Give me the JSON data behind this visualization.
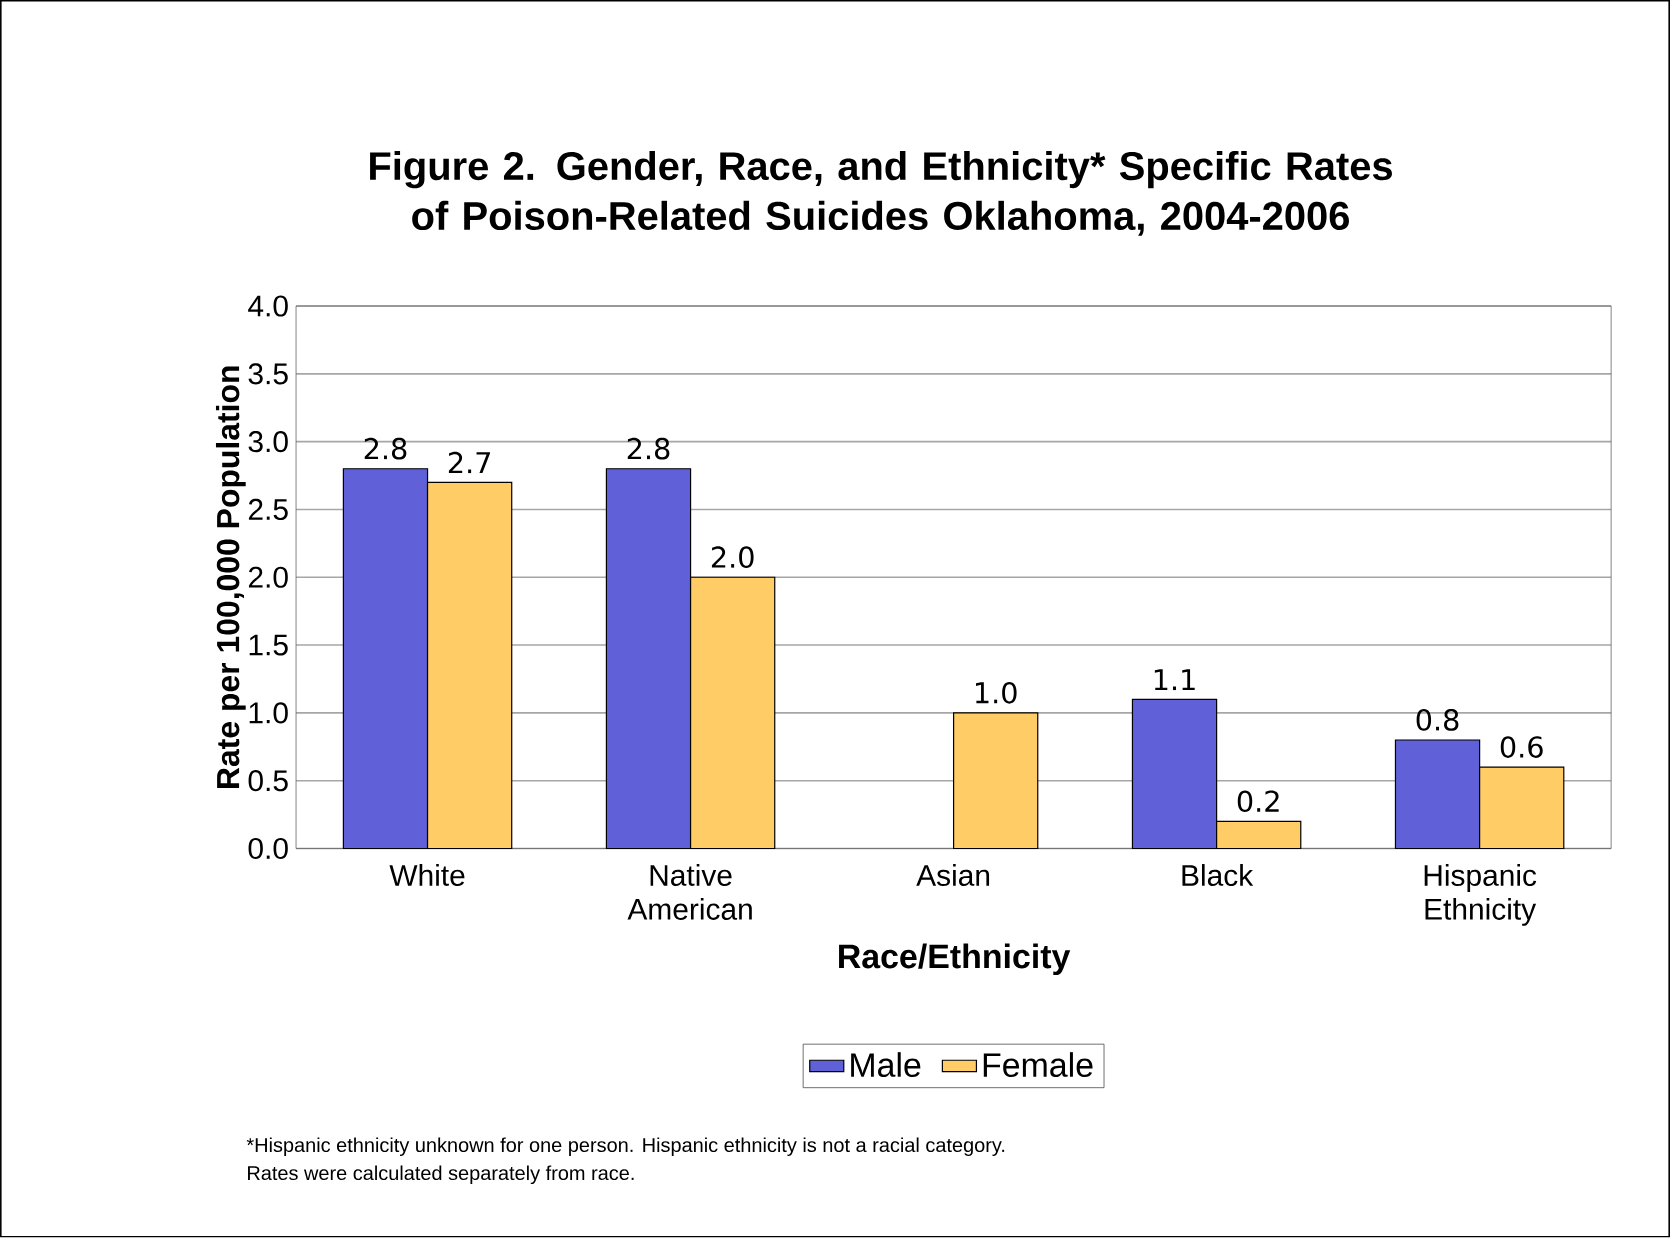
{
  "chart_data": {
    "type": "bar",
    "title": "Figure 2. Gender, Race, and Ethnicity* Specific Rates of Poison-Related Suicides Oklahoma, 2004-2006",
    "xlabel": "Race/Ethnicity",
    "ylabel": "Rate per 100,000 Population",
    "categories": [
      "White",
      "Native American",
      "Asian",
      "Black",
      "Hispanic Ethnicity"
    ],
    "series": [
      {
        "name": "Male",
        "color": "#6060d8",
        "values": [
          2.8,
          2.8,
          null,
          1.1,
          0.8
        ],
        "value_labels": [
          "2.8",
          "2.8",
          null,
          "1.1",
          "0.8"
        ]
      },
      {
        "name": "Female",
        "color": "#ffcc66",
        "values": [
          2.7,
          2.0,
          1.0,
          0.2,
          0.6
        ],
        "value_labels": [
          "2.7",
          "2.0",
          "1.0",
          "0.2",
          "0.6"
        ]
      }
    ],
    "ylim": [
      0,
      4
    ],
    "yticks": [
      {
        "value": 0,
        "label": "0.0"
      },
      {
        "value": 0.5,
        "label": "0.5"
      },
      {
        "value": 1,
        "label": "1.0"
      },
      {
        "value": 1.5,
        "label": "1.5"
      },
      {
        "value": 2,
        "label": "2.0"
      },
      {
        "value": 2.5,
        "label": "2.5"
      },
      {
        "value": 3,
        "label": "3.0"
      },
      {
        "value": 3.5,
        "label": "3.5"
      },
      {
        "value": 4,
        "label": "4.0"
      }
    ],
    "grid": "y",
    "legend": "bottom",
    "annotations": [
      "*Hispanic ethnicity unknown for one person. Hispanic ethnicity is not a racial category.",
      "Rates were calculated separately from race."
    ]
  }
}
